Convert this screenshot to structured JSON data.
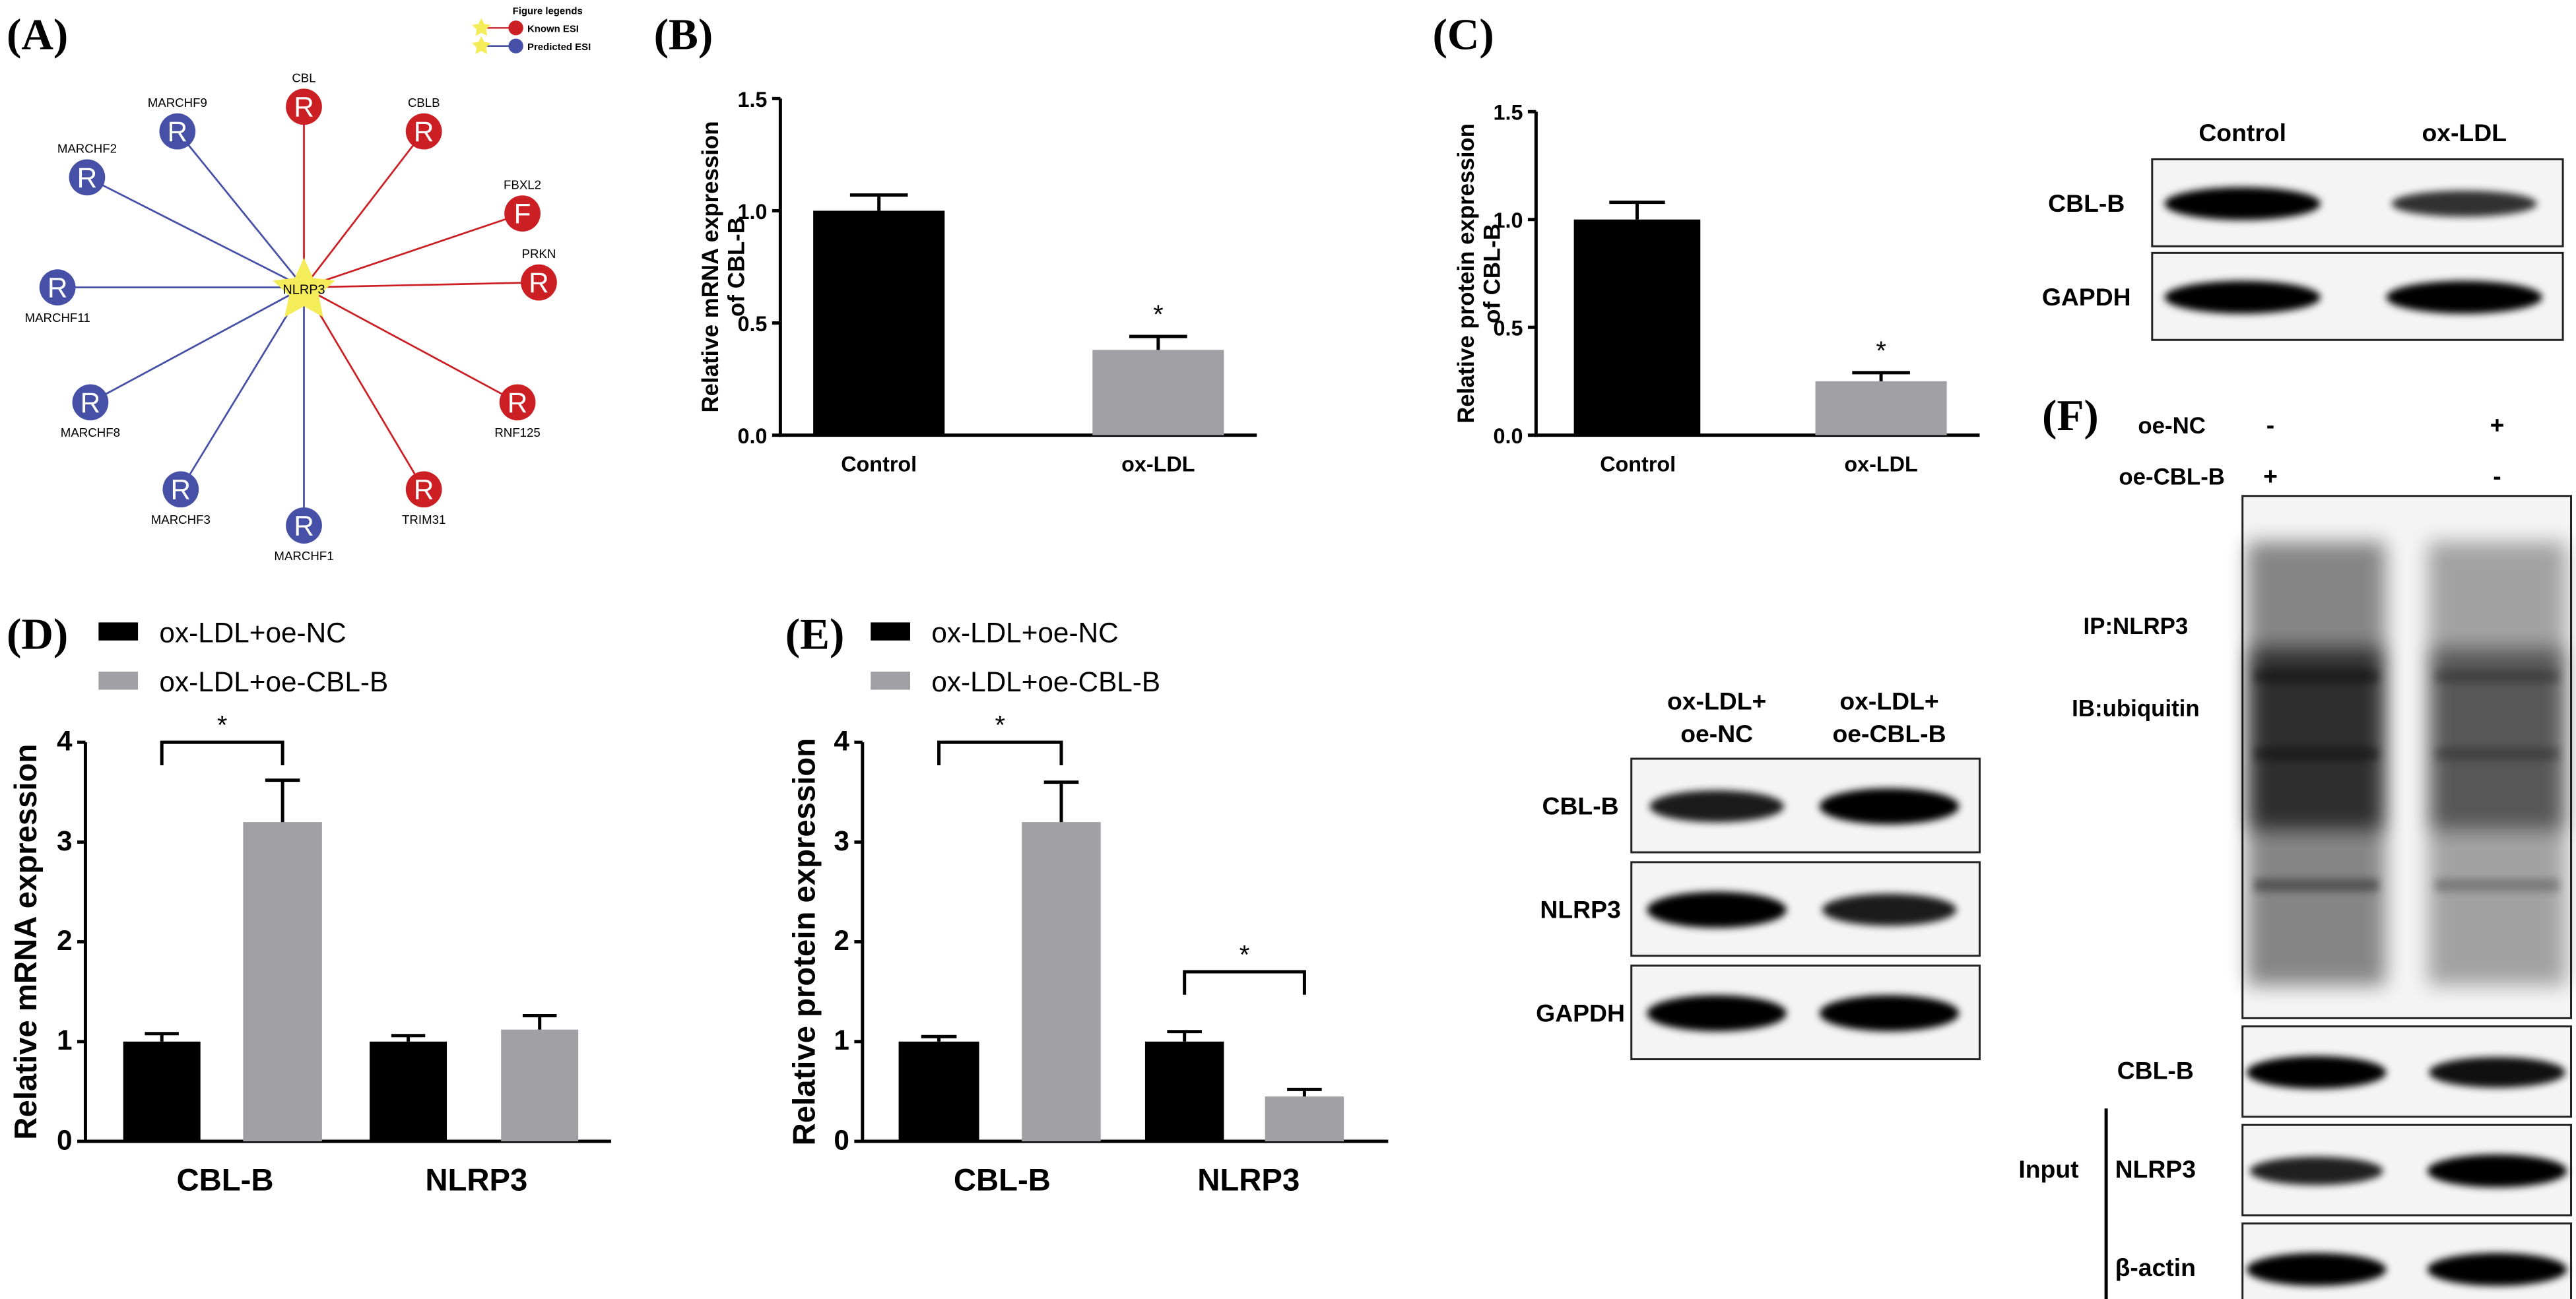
{
  "panel_labels": {
    "A": "(A)",
    "B": "(B)",
    "C": "(C)",
    "D": "(D)",
    "E": "(E)",
    "F": "(F)"
  },
  "colors": {
    "known": "#cc1f24",
    "predicted": "#4550a6",
    "star": "#f5ec5a",
    "bar_black": "#000000",
    "bar_gray": "#a1a1a5"
  },
  "network": {
    "center": "NLRP3",
    "legend": {
      "title": "Figure legends",
      "known": "Known ESI",
      "predicted": "Predicted ESI"
    },
    "nodes": [
      {
        "name": "CBL",
        "letter": "R",
        "type": "known"
      },
      {
        "name": "CBLB",
        "letter": "R",
        "type": "known"
      },
      {
        "name": "FBXL2",
        "letter": "F",
        "type": "known"
      },
      {
        "name": "PRKN",
        "letter": "R",
        "type": "known"
      },
      {
        "name": "RNF125",
        "letter": "R",
        "type": "known"
      },
      {
        "name": "TRIM31",
        "letter": "R",
        "type": "known"
      },
      {
        "name": "MARCHF1",
        "letter": "R",
        "type": "predicted"
      },
      {
        "name": "MARCHF3",
        "letter": "R",
        "type": "predicted"
      },
      {
        "name": "MARCHF8",
        "letter": "R",
        "type": "predicted"
      },
      {
        "name": "MARCHF11",
        "letter": "R",
        "type": "predicted"
      },
      {
        "name": "MARCHF2",
        "letter": "R",
        "type": "predicted"
      },
      {
        "name": "MARCHF9",
        "letter": "R",
        "type": "predicted"
      }
    ]
  },
  "chart_data": [
    {
      "id": "B",
      "type": "bar",
      "ylabel": [
        "Relative mRNA expression",
        "of CBL-B"
      ],
      "categories": [
        "Control",
        "ox-LDL"
      ],
      "values": [
        1.0,
        0.38
      ],
      "errors": [
        0.07,
        0.06
      ],
      "significance": [
        "",
        "*"
      ],
      "colors": [
        "#000000",
        "#a1a1a5"
      ],
      "ylim": [
        0,
        1.5
      ],
      "yticks": [
        "0.0",
        "0.5",
        "1.0",
        "1.5"
      ],
      "ytick_values": [
        0,
        0.5,
        1.0,
        1.5
      ]
    },
    {
      "id": "C",
      "type": "bar",
      "ylabel": [
        "Relative protein expression",
        "of CBL-B"
      ],
      "categories": [
        "Control",
        "ox-LDL"
      ],
      "values": [
        1.0,
        0.25
      ],
      "errors": [
        0.08,
        0.04
      ],
      "significance": [
        "",
        "*"
      ],
      "colors": [
        "#000000",
        "#a1a1a5"
      ],
      "ylim": [
        0,
        1.5
      ],
      "yticks": [
        "0.0",
        "0.5",
        "1.0",
        "1.5"
      ],
      "ytick_values": [
        0,
        0.5,
        1.0,
        1.5
      ]
    },
    {
      "id": "D",
      "type": "bar",
      "ylabel": [
        "Relative mRNA expression"
      ],
      "categories": [
        "CBL-B",
        "NLRP3"
      ],
      "series": [
        {
          "name": "ox-LDL+oe-NC",
          "values": [
            1.0,
            1.0
          ],
          "errors": [
            0.08,
            0.06
          ],
          "color": "#000000"
        },
        {
          "name": "ox-LDL+oe-CBL-B",
          "values": [
            3.2,
            1.12
          ],
          "errors": [
            0.42,
            0.14
          ],
          "color": "#a1a1a5"
        }
      ],
      "brackets": [
        {
          "category": "CBL-B",
          "label": "*"
        }
      ],
      "ylim": [
        0,
        4
      ],
      "yticks": [
        "0",
        "1",
        "2",
        "3",
        "4"
      ],
      "ytick_values": [
        0,
        1,
        2,
        3,
        4
      ],
      "legend": "top-left"
    },
    {
      "id": "E",
      "type": "bar",
      "ylabel": [
        "Relative protein expression"
      ],
      "categories": [
        "CBL-B",
        "NLRP3"
      ],
      "series": [
        {
          "name": "ox-LDL+oe-NC",
          "values": [
            1.0,
            1.0
          ],
          "errors": [
            0.05,
            0.1
          ],
          "color": "#000000"
        },
        {
          "name": "ox-LDL+oe-CBL-B",
          "values": [
            3.2,
            0.45
          ],
          "errors": [
            0.4,
            0.07
          ],
          "color": "#a1a1a5"
        }
      ],
      "brackets": [
        {
          "category": "CBL-B",
          "label": "*"
        },
        {
          "category": "NLRP3",
          "label": "*"
        }
      ],
      "ylim": [
        0,
        4
      ],
      "yticks": [
        "0",
        "1",
        "2",
        "3",
        "4"
      ],
      "ytick_values": [
        0,
        1,
        2,
        3,
        4
      ],
      "legend": "top-left"
    }
  ],
  "blots": {
    "C": {
      "lanes": [
        "Control",
        "ox-LDL"
      ],
      "rows": [
        {
          "label": "CBL-B",
          "intensity": [
            1.0,
            0.55
          ]
        },
        {
          "label": "GAPDH",
          "intensity": [
            1.0,
            1.0
          ]
        }
      ]
    },
    "E": {
      "lanes": [
        [
          "ox-LDL+",
          "oe-NC"
        ],
        [
          "ox-LDL+",
          "oe-CBL-B"
        ]
      ],
      "rows": [
        {
          "label": "CBL-B",
          "intensity": [
            0.75,
            1.0
          ]
        },
        {
          "label": "NLRP3",
          "intensity": [
            1.0,
            0.75
          ]
        },
        {
          "label": "GAPDH",
          "intensity": [
            1.0,
            1.0
          ]
        }
      ]
    },
    "F": {
      "conditions": [
        {
          "label": "oe-NC",
          "marks": [
            "-",
            "+"
          ]
        },
        {
          "label": "oe-CBL-B",
          "marks": [
            "+",
            "-"
          ]
        }
      ],
      "ip_label": "IP:NLRP3",
      "ib_label": "IB:ubiquitin",
      "ubiquitin_intensity": [
        1.0,
        0.65
      ],
      "input_label": "Input",
      "rows": [
        {
          "label": "CBL-B",
          "intensity": [
            1.0,
            0.85
          ]
        },
        {
          "label": "NLRP3",
          "intensity": [
            0.7,
            1.0
          ]
        },
        {
          "label": "β-actin",
          "intensity": [
            1.0,
            1.0
          ]
        }
      ]
    }
  }
}
